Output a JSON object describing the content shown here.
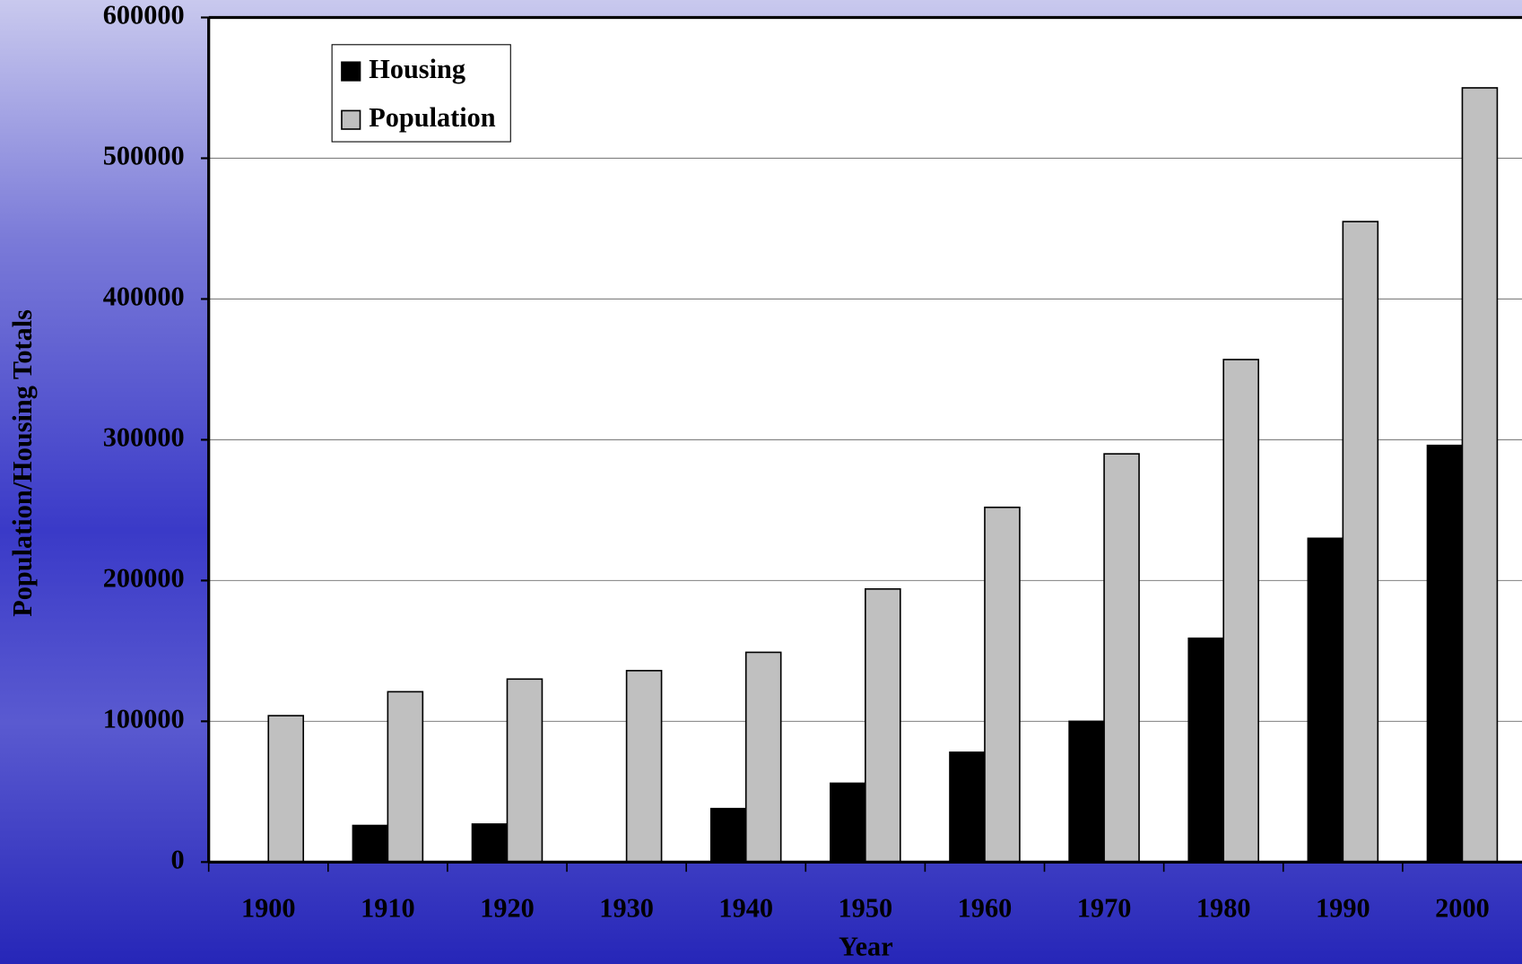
{
  "chart_data": {
    "type": "bar",
    "x_label": "Year",
    "y_label": "Population/Housing Totals",
    "categories": [
      "1900",
      "1910",
      "1920",
      "1930",
      "1940",
      "1950",
      "1960",
      "1970",
      "1980",
      "1990",
      "2000"
    ],
    "series": [
      {
        "name": "Housing",
        "color": "#000000",
        "values": [
          null,
          26000,
          27000,
          null,
          38000,
          56000,
          78000,
          100000,
          159000,
          230000,
          296000
        ]
      },
      {
        "name": "Population",
        "color": "#c0c0c0",
        "values": [
          104000,
          121000,
          130000,
          136000,
          149000,
          194000,
          252000,
          290000,
          357000,
          455000,
          550000
        ]
      }
    ],
    "ylim": [
      0,
      600000
    ],
    "yticks": [
      0,
      100000,
      200000,
      300000,
      400000,
      500000,
      600000
    ],
    "grid": true,
    "legend": "upper left"
  }
}
